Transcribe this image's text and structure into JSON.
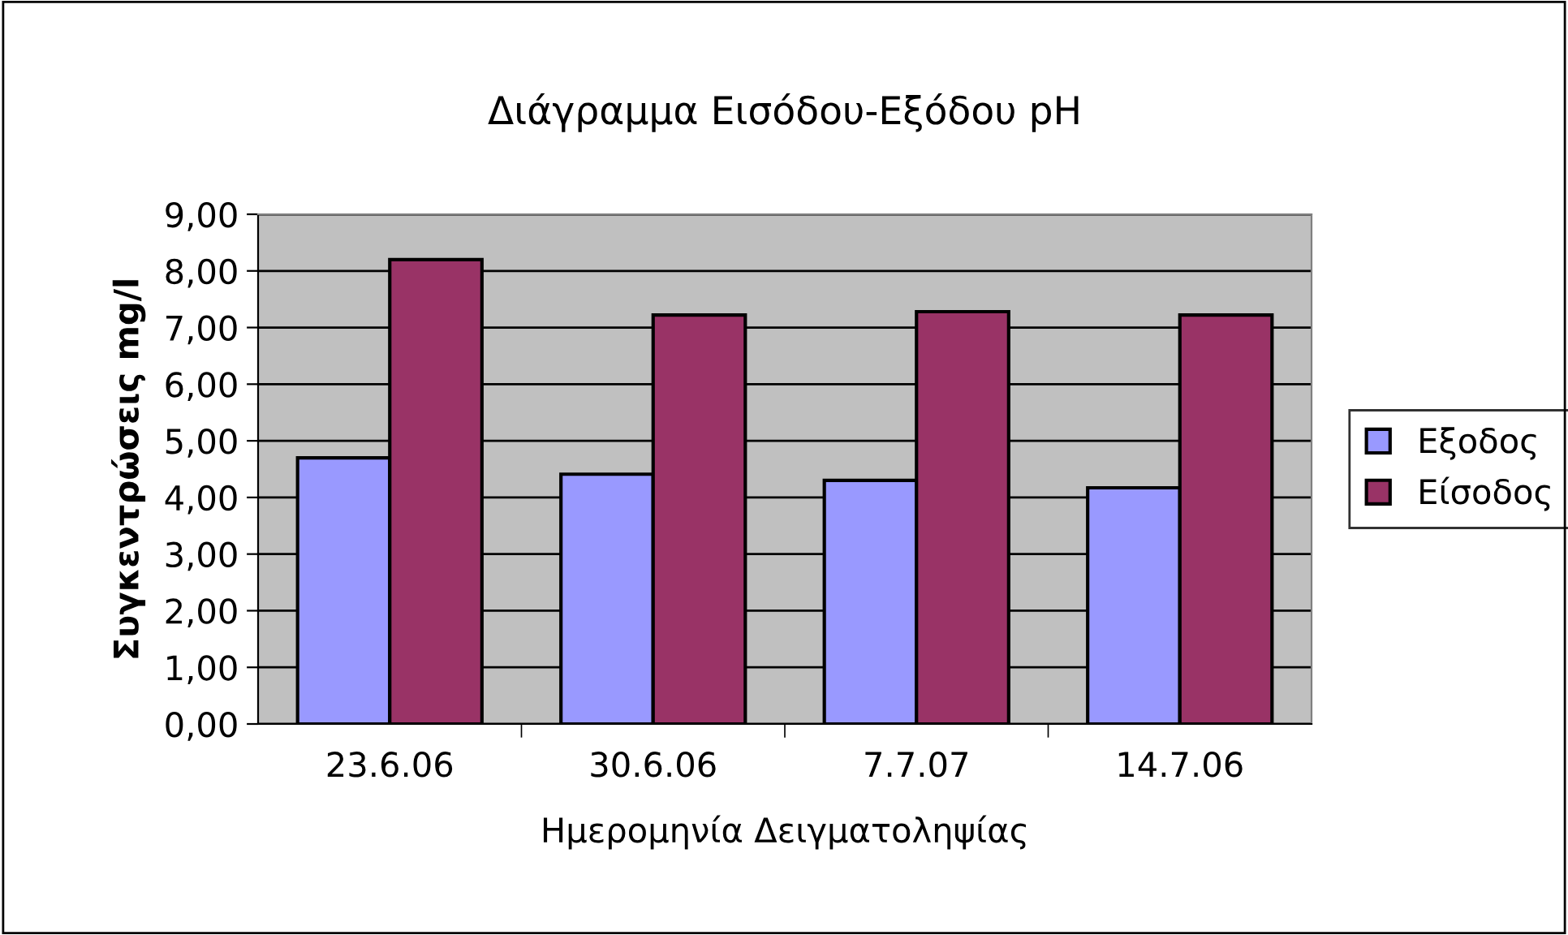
{
  "chart_data": {
    "type": "bar",
    "title": "Διάγραμμα Εισόδου-Εξόδου pH",
    "xlabel": "Ημερομηνία Δειγματοληψίας",
    "ylabel": "Συγκεντρώσεις mg/l",
    "categories": [
      "23.6.06",
      "30.6.06",
      "7.7.07",
      "14.7.06"
    ],
    "series": [
      {
        "name": "Εξοδος",
        "color": "#9999ff",
        "values": [
          4.7,
          4.41,
          4.3,
          4.17
        ]
      },
      {
        "name": "Είσοδος",
        "color": "#993366",
        "values": [
          8.2,
          7.22,
          7.28,
          7.22
        ]
      }
    ],
    "ylim": [
      0,
      9
    ],
    "yticks": [
      {
        "value": 0,
        "label": "0,00"
      },
      {
        "value": 1,
        "label": "1,00"
      },
      {
        "value": 2,
        "label": "2,00"
      },
      {
        "value": 3,
        "label": "3,00"
      },
      {
        "value": 4,
        "label": "4,00"
      },
      {
        "value": 5,
        "label": "5,00"
      },
      {
        "value": 6,
        "label": "6,00"
      },
      {
        "value": 7,
        "label": "7,00"
      },
      {
        "value": 8,
        "label": "8,00"
      },
      {
        "value": 9,
        "label": "9,00"
      }
    ],
    "grid": "y",
    "legend": "right"
  }
}
